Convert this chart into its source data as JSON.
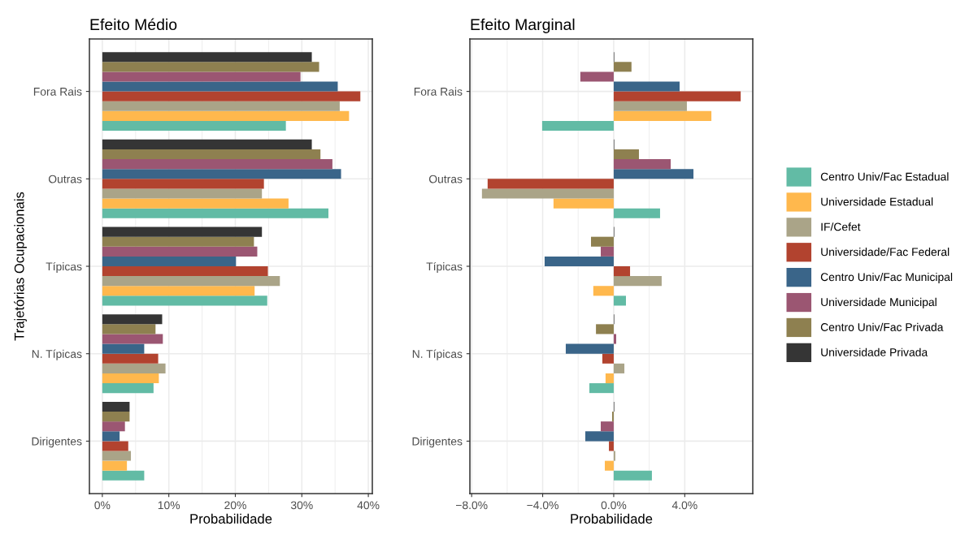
{
  "chart_data": [
    {
      "type": "bar",
      "orientation": "horizontal",
      "title": "Efeito Médio",
      "xlabel": "Probabilidade",
      "ylabel": "Trajetórias Ocupacionais",
      "categories": [
        "Fora Rais",
        "Outras",
        "Típicas",
        "N. Típicas",
        "Dirigentes"
      ],
      "xlim": [
        -1.94,
        40.6
      ],
      "xticks": [
        {
          "value": 0,
          "label": "0%"
        },
        {
          "value": 10,
          "label": "10%"
        },
        {
          "value": 20,
          "label": "20%"
        },
        {
          "value": 30,
          "label": "30%"
        },
        {
          "value": 40,
          "label": "40%"
        }
      ],
      "grid": true,
      "legend": "right",
      "series": [
        {
          "name": "Centro Univ/Fac Estadual",
          "color": "#62bba5",
          "values": [
            27.6,
            34.0,
            24.8,
            7.7,
            6.3
          ]
        },
        {
          "name": "Universidade Estadual",
          "color": "#ffb84d",
          "values": [
            37.1,
            28.0,
            22.9,
            8.5,
            3.7
          ]
        },
        {
          "name": "IF/Cefet",
          "color": "#aaa488",
          "values": [
            35.7,
            24.0,
            26.7,
            9.5,
            4.3
          ]
        },
        {
          "name": "Universidade/Fac Federal",
          "color": "#b2432f",
          "values": [
            38.8,
            24.3,
            24.9,
            8.4,
            3.9
          ]
        },
        {
          "name": "Centro Univ/Fac Municipal",
          "color": "#3a6589",
          "values": [
            35.4,
            35.9,
            20.1,
            6.3,
            2.6
          ]
        },
        {
          "name": "Universidade Municipal",
          "color": "#9b5672",
          "values": [
            29.8,
            34.6,
            23.3,
            9.1,
            3.4
          ]
        },
        {
          "name": "Centro Univ/Fac Privada",
          "color": "#8e8050",
          "values": [
            32.6,
            32.8,
            22.8,
            8.0,
            4.1
          ]
        },
        {
          "name": "Universidade Privada",
          "color": "#353535",
          "values": [
            31.5,
            31.5,
            24.0,
            9.0,
            4.1
          ]
        }
      ]
    },
    {
      "type": "bar",
      "orientation": "horizontal",
      "title": "Efeito Marginal",
      "xlabel": "Probabilidade",
      "categories": [
        "Fora Rais",
        "Outras",
        "Típicas",
        "N. Típicas",
        "Dirigentes"
      ],
      "xlim": [
        -8.1,
        7.83
      ],
      "xticks": [
        {
          "value": -8,
          "label": "−8.0%"
        },
        {
          "value": -4,
          "label": "−4.0%"
        },
        {
          "value": 0,
          "label": "0.0%"
        },
        {
          "value": 4,
          "label": "4.0%"
        }
      ],
      "grid": true,
      "series": [
        {
          "color": "#62bba5",
          "values": [
            -4.03,
            2.61,
            0.69,
            -1.37,
            2.15
          ]
        },
        {
          "color": "#ffb84d",
          "values": [
            5.5,
            -3.39,
            -1.15,
            -0.46,
            -0.5
          ]
        },
        {
          "color": "#aaa488",
          "values": [
            4.12,
            -7.42,
            2.7,
            0.6,
            0.09
          ]
        },
        {
          "color": "#b2432f",
          "values": [
            7.15,
            -7.1,
            0.92,
            -0.64,
            -0.27
          ]
        },
        {
          "color": "#3a6589",
          "values": [
            3.71,
            4.49,
            -3.89,
            -2.7,
            -1.6
          ]
        },
        {
          "color": "#9b5672",
          "values": [
            -1.88,
            3.21,
            -0.73,
            0.14,
            -0.73
          ]
        },
        {
          "color": "#8e8050",
          "values": [
            1.0,
            1.42,
            -1.28,
            -1.0,
            -0.09
          ]
        },
        {
          "color": "#353535",
          "values": [
            0.03,
            0.03,
            0.03,
            0.03,
            0.03
          ]
        }
      ]
    }
  ]
}
